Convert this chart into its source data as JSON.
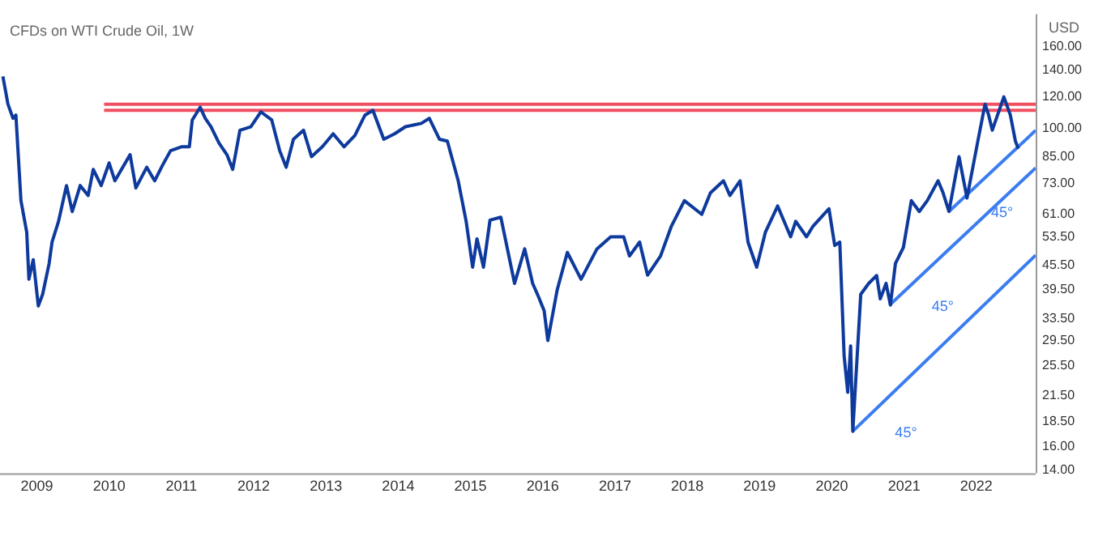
{
  "chart_data": {
    "type": "line",
    "title": "CFDs on WTI Crude Oil, 1W",
    "ylabel": "USD",
    "log": "y",
    "marker": "none",
    "grid": false,
    "legend": false,
    "xlim": [
      2008.49,
      2022.82
    ],
    "xticks": [
      2009,
      2010,
      2011,
      2012,
      2013,
      2014,
      2015,
      2016,
      2017,
      2018,
      2019,
      2020,
      2021,
      2022
    ],
    "ylim": [
      13.75,
      193
    ],
    "yticks": [
      {
        "value": 14,
        "label": "14.00"
      },
      {
        "value": 16,
        "label": "16.00"
      },
      {
        "value": 18.5,
        "label": "18.50"
      },
      {
        "value": 21.5,
        "label": "21.50"
      },
      {
        "value": 25.5,
        "label": "25.50"
      },
      {
        "value": 29.5,
        "label": "29.50"
      },
      {
        "value": 33.5,
        "label": "33.50"
      },
      {
        "value": 39.5,
        "label": "39.50"
      },
      {
        "value": 45.5,
        "label": "45.50"
      },
      {
        "value": 53.5,
        "label": "53.50"
      },
      {
        "value": 61,
        "label": "61.00"
      },
      {
        "value": 73,
        "label": "73.00"
      },
      {
        "value": 85,
        "label": "85.00"
      },
      {
        "value": 100,
        "label": "100.00"
      },
      {
        "value": 120,
        "label": "120.00"
      },
      {
        "value": 140,
        "label": "140.00"
      },
      {
        "value": 160,
        "label": "160.00"
      }
    ],
    "series": [
      {
        "color": "#0d3a9c",
        "x": [
          2008.53,
          2008.6,
          2008.67,
          2008.71,
          2008.78,
          2008.86,
          2008.89,
          2008.95,
          2009.02,
          2009.08,
          2009.17,
          2009.21,
          2009.3,
          2009.41,
          2009.49,
          2009.6,
          2009.71,
          2009.78,
          2009.89,
          2010,
          2010.08,
          2010.29,
          2010.37,
          2010.52,
          2010.63,
          2010.74,
          2010.85,
          2011,
          2011.11,
          2011.15,
          2011.26,
          2011.33,
          2011.41,
          2011.52,
          2011.63,
          2011.71,
          2011.81,
          2011.96,
          2012.1,
          2012.25,
          2012.36,
          2012.45,
          2012.55,
          2012.69,
          2012.8,
          2012.95,
          2013.1,
          2013.25,
          2013.4,
          2013.54,
          2013.65,
          2013.8,
          2013.95,
          2014.1,
          2014.32,
          2014.43,
          2014.57,
          2014.68,
          2014.83,
          2014.94,
          2015.03,
          2015.09,
          2015.18,
          2015.27,
          2015.42,
          2015.61,
          2015.75,
          2015.86,
          2015.94,
          2016.02,
          2016.07,
          2016.2,
          2016.34,
          2016.53,
          2016.75,
          2016.94,
          2017.12,
          2017.2,
          2017.34,
          2017.45,
          2017.63,
          2017.78,
          2017.96,
          2018.2,
          2018.32,
          2018.5,
          2018.59,
          2018.73,
          2018.84,
          2018.96,
          2019.08,
          2019.25,
          2019.43,
          2019.5,
          2019.65,
          2019.74,
          2019.96,
          2020.04,
          2020.11,
          2020.17,
          2020.22,
          2020.26,
          2020.29,
          2020.4,
          2020.51,
          2020.62,
          2020.67,
          2020.75,
          2020.81,
          2020.88,
          2020.99,
          2021.1,
          2021.21,
          2021.32,
          2021.47,
          2021.54,
          2021.62,
          2021.76,
          2021.87,
          2022.02,
          2022.12,
          2022.17,
          2022.22,
          2022.38,
          2022.47,
          2022.54,
          2022.58
        ],
        "values": [
          135,
          115,
          106,
          108,
          66,
          55,
          42,
          47,
          36,
          38.5,
          46,
          52,
          58.6,
          72,
          62,
          72,
          68,
          79,
          72,
          82,
          74,
          86,
          71,
          80,
          74,
          81,
          88,
          90,
          90,
          105,
          113,
          106,
          101,
          92,
          86,
          79,
          99,
          101,
          110,
          105,
          88,
          80,
          94,
          99,
          85,
          90,
          97,
          90,
          96,
          108,
          111,
          94,
          97,
          101,
          103,
          106,
          94,
          93,
          74,
          58.6,
          45,
          53,
          45,
          59,
          60,
          41,
          50,
          41,
          38,
          35,
          29.5,
          39.5,
          49,
          42,
          50,
          53.6,
          53.6,
          48,
          52,
          43,
          48,
          57,
          66,
          61,
          69,
          74,
          68,
          74,
          52,
          45,
          55,
          64,
          53.6,
          58.6,
          53.6,
          57,
          63,
          51,
          52,
          27,
          21.9,
          28.6,
          17.5,
          38.5,
          41,
          42.9,
          37.5,
          41,
          36.2,
          46,
          50.4,
          66,
          62,
          66,
          74,
          69,
          62,
          85,
          67,
          93,
          115,
          108,
          99,
          120,
          108,
          93,
          89
        ]
      },
      {
        "color": "#f05060",
        "x": [
          2009.93,
          2022.82
        ],
        "values": [
          115,
          115
        ]
      },
      {
        "color": "#f05060",
        "x": [
          2009.93,
          2022.82
        ],
        "values": [
          111,
          111
        ]
      },
      {
        "color": "#3b7df0",
        "x": [
          2020.29,
          2022.82
        ],
        "values": [
          17.5,
          48.2
        ]
      },
      {
        "color": "#3b7df0",
        "x": [
          2020.8,
          2022.82
        ],
        "values": [
          36.2,
          79.7
        ]
      },
      {
        "color": "#3b7df0",
        "x": [
          2021.62,
          2022.82
        ],
        "values": [
          62,
          98.9
        ]
      }
    ],
    "annotations": [
      {
        "text": "45°",
        "x": 2020.29,
        "y": 17.5
      },
      {
        "text": "45°",
        "x": 2020.8,
        "y": 36.2
      },
      {
        "text": "45°",
        "x": 2021.62,
        "y": 62
      }
    ]
  }
}
